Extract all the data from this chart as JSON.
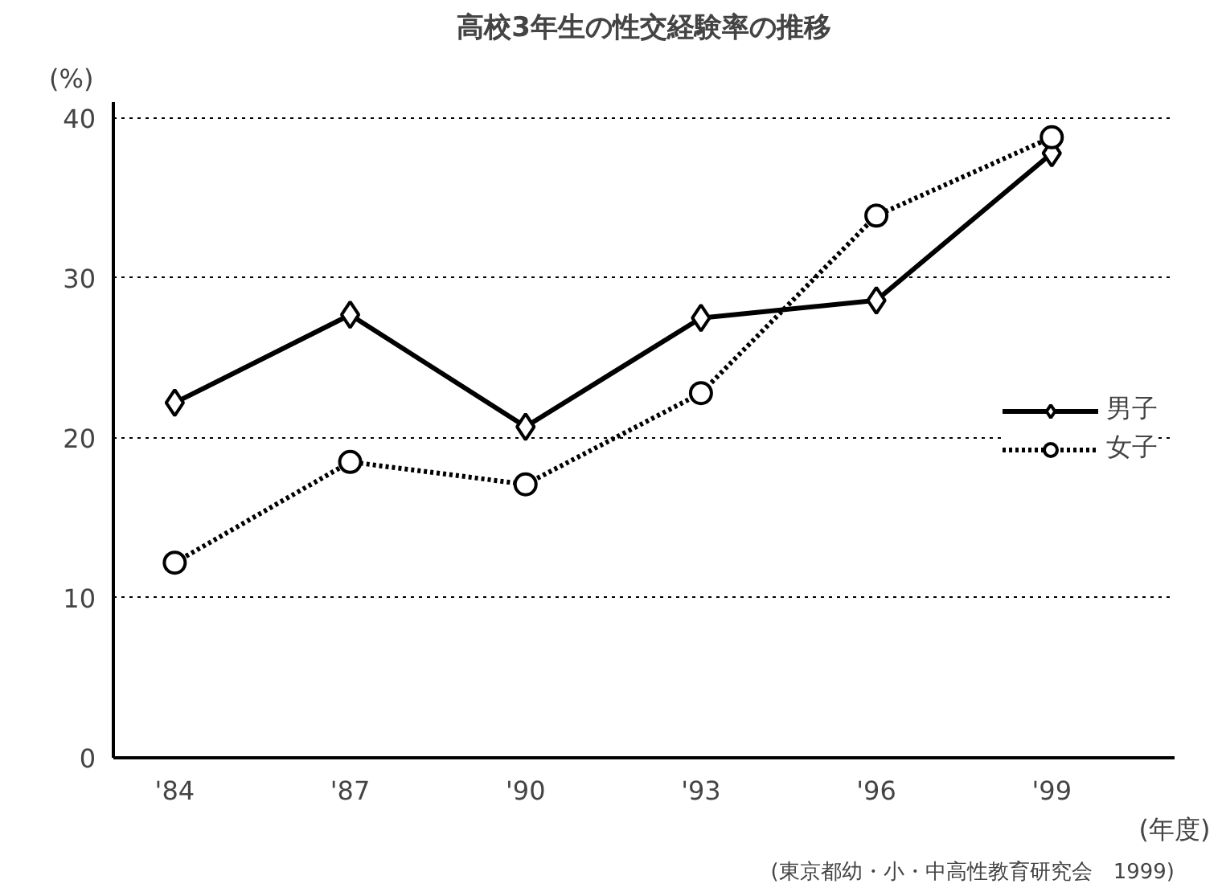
{
  "chart_data": {
    "type": "line",
    "title": "高校3年生の性交経験率の推移",
    "ylabel": "(%)",
    "xlabel": "(年度)",
    "categories": [
      "'84",
      "'87",
      "'90",
      "'93",
      "'96",
      "'99"
    ],
    "series": [
      {
        "name": "男子",
        "color": "#000000",
        "values": [
          22.2,
          27.7,
          20.7,
          27.5,
          28.6,
          37.8
        ],
        "marker": "diamond",
        "line_style": "solid"
      },
      {
        "name": "女子",
        "color": "#000000",
        "values": [
          12.2,
          18.5,
          17.1,
          22.8,
          33.9,
          38.8
        ],
        "marker": "circle",
        "line_style": "dotted"
      }
    ],
    "ylim": [
      0,
      41
    ],
    "yticks": [
      0,
      10,
      20,
      30,
      40
    ],
    "grid": "y",
    "legend": "right",
    "annotations": [
      "(東京都幼・小・中高性教育研究会　1999)"
    ]
  }
}
